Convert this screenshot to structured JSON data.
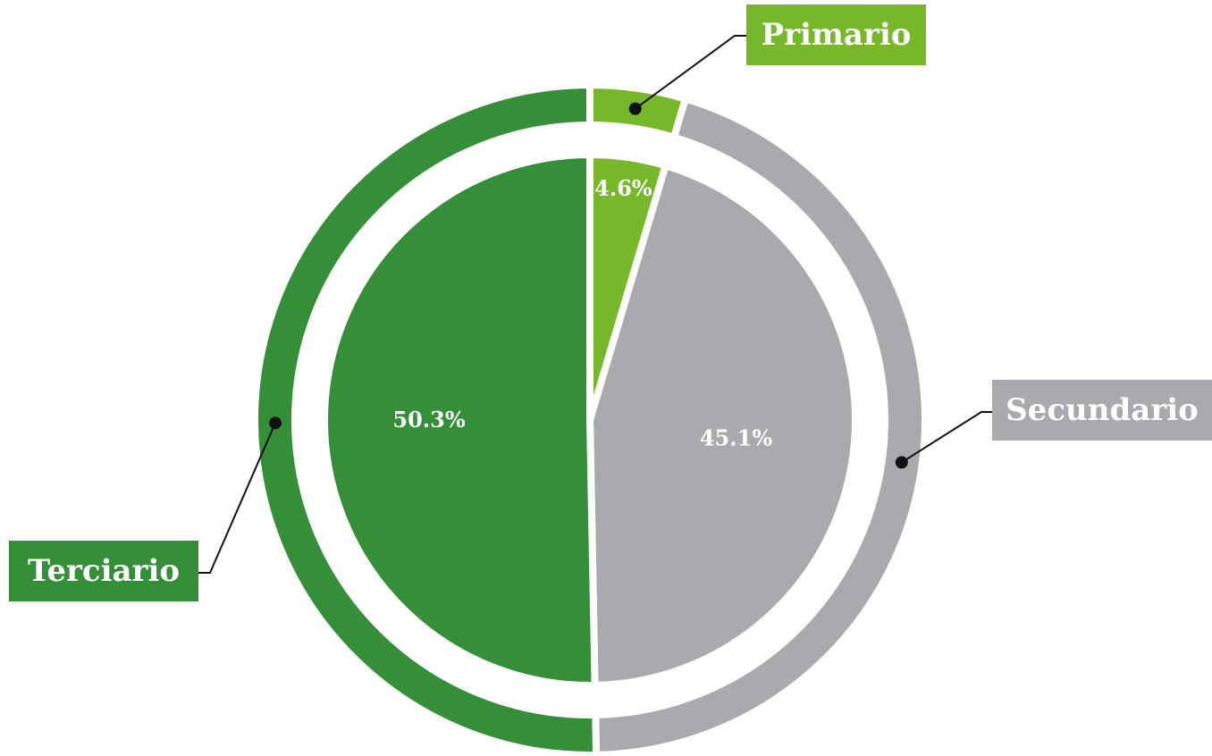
{
  "chart_data": {
    "type": "pie",
    "categories": [
      "Primario",
      "Secundario",
      "Terciario"
    ],
    "values": [
      4.6,
      45.1,
      50.3
    ],
    "value_labels": [
      "4.6%",
      "45.1%",
      "50.3%"
    ],
    "colors": [
      "#76b82a",
      "#a9aaad",
      "#358e38"
    ]
  }
}
